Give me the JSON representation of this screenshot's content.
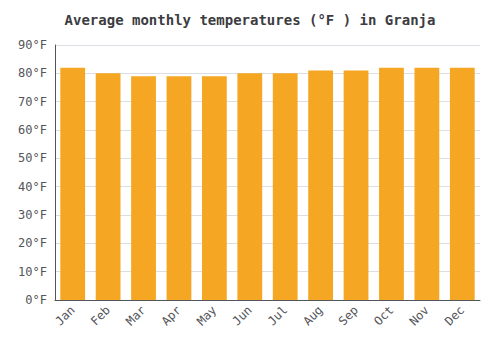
{
  "chart_data": {
    "type": "bar",
    "title": "Average monthly temperatures (°F ) in Granja",
    "categories": [
      "Jan",
      "Feb",
      "Mar",
      "Apr",
      "May",
      "Jun",
      "Jul",
      "Aug",
      "Sep",
      "Oct",
      "Nov",
      "Dec"
    ],
    "values": [
      82,
      80,
      79,
      79,
      79,
      80,
      80,
      81,
      81,
      82,
      82,
      82
    ],
    "color": "#F5A623",
    "ylim": [
      0,
      90
    ],
    "yticks": [
      {
        "value": 0,
        "label": "0°F"
      },
      {
        "value": 10,
        "label": "10°F"
      },
      {
        "value": 20,
        "label": "20°F"
      },
      {
        "value": 30,
        "label": "30°F"
      },
      {
        "value": 40,
        "label": "40°F"
      },
      {
        "value": 50,
        "label": "50°F"
      },
      {
        "value": 60,
        "label": "60°F"
      },
      {
        "value": 70,
        "label": "70°F"
      },
      {
        "value": 80,
        "label": "80°F"
      },
      {
        "value": 90,
        "label": "90°F"
      }
    ],
    "grid": true
  }
}
